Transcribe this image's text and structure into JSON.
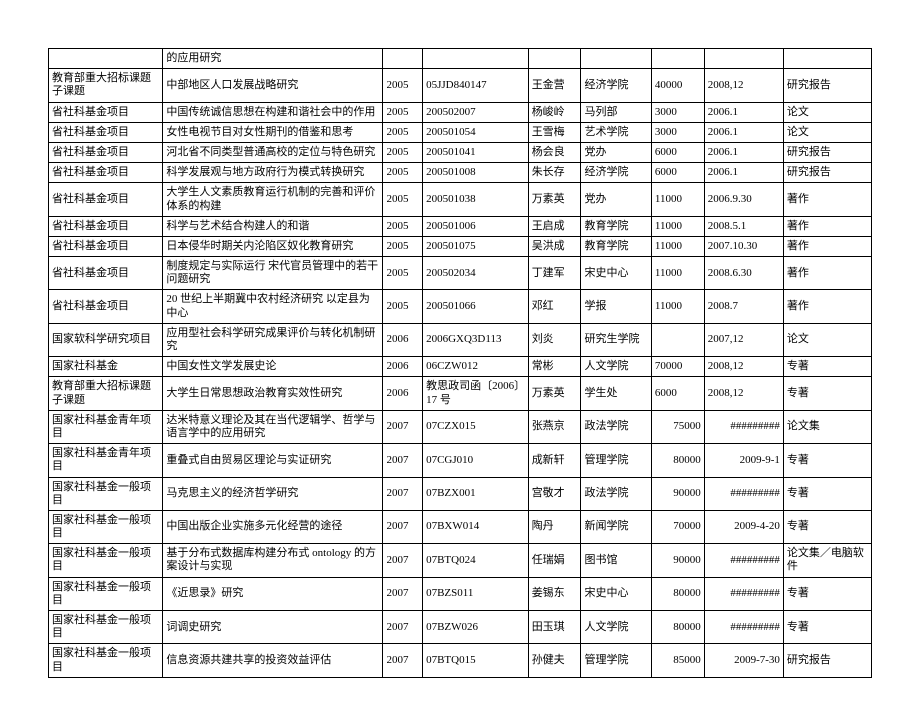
{
  "table": {
    "rows": [
      {
        "c0": "",
        "c1": "的应用研究",
        "c2": "",
        "c3": "",
        "c4": "",
        "c5": "",
        "c6": "",
        "c6align": "l",
        "c7": "",
        "c8": ""
      },
      {
        "c0": "教育部重大招标课题子课题",
        "c1": "中部地区人口发展战略研究",
        "c2": "2005",
        "c3": "05JJD840147",
        "c4": "王金营",
        "c5": "经济学院",
        "c6": "40000",
        "c6align": "l",
        "c7": "2008,12",
        "c8": "研究报告"
      },
      {
        "c0": "省社科基金项目",
        "c1": "中国传统诚信思想在构建和谐社会中的作用",
        "c2": "2005",
        "c3": "200502007",
        "c4": "杨峻岭",
        "c5": "马列部",
        "c6": "3000",
        "c6align": "l",
        "c7": "2006.1",
        "c8": "论文"
      },
      {
        "c0": "省社科基金项目",
        "c1": "女性电视节目对女性期刊的借鉴和思考",
        "c2": "2005",
        "c3": "200501054",
        "c4": "王雪梅",
        "c5": "艺术学院",
        "c6": "3000",
        "c6align": "l",
        "c7": "2006.1",
        "c8": "论文"
      },
      {
        "c0": "省社科基金项目",
        "c1": "河北省不同类型普通高校的定位与特色研究",
        "c2": "2005",
        "c3": "200501041",
        "c4": "杨会良",
        "c5": "党办",
        "c6": "6000",
        "c6align": "l",
        "c7": "2006.1",
        "c8": "研究报告"
      },
      {
        "c0": "省社科基金项目",
        "c1": "科学发展观与地方政府行为模式转换研究",
        "c2": "2005",
        "c3": "200501008",
        "c4": "朱长存",
        "c5": "经济学院",
        "c6": "6000",
        "c6align": "l",
        "c7": "2006.1",
        "c8": "研究报告"
      },
      {
        "c0": "省社科基金项目",
        "c1": "大学生人文素质教育运行机制的完善和评价体系的构建",
        "c2": "2005",
        "c3": "200501038",
        "c4": "万素英",
        "c5": "党办",
        "c6": "11000",
        "c6align": "l",
        "c7": "2006.9.30",
        "c8": "著作"
      },
      {
        "c0": "省社科基金项目",
        "c1": "科学与艺术结合构建人的和谐",
        "c2": "2005",
        "c3": "200501006",
        "c4": "王启成",
        "c5": "教育学院",
        "c6": "11000",
        "c6align": "l",
        "c7": "2008.5.1",
        "c8": "著作"
      },
      {
        "c0": "省社科基金项目",
        "c1": "日本侵华时期关内沦陷区奴化教育研究",
        "c2": "2005",
        "c3": "200501075",
        "c4": "吴洪成",
        "c5": "教育学院",
        "c6": "11000",
        "c6align": "l",
        "c7": "2007.10.30",
        "c8": "著作"
      },
      {
        "c0": "省社科基金项目",
        "c1": "制度规定与实际运行 宋代官员管理中的若干问题研究",
        "c2": "2005",
        "c3": "200502034",
        "c4": "丁建军",
        "c5": "宋史中心",
        "c6": "11000",
        "c6align": "l",
        "c7": "2008.6.30",
        "c8": "著作"
      },
      {
        "c0": "省社科基金项目",
        "c1": "20 世纪上半期冀中农村经济研究 以定县为中心",
        "c2": "2005",
        "c3": "200501066",
        "c4": "邓红",
        "c5": "学报",
        "c6": "11000",
        "c6align": "l",
        "c7": "2008.7",
        "c8": "著作"
      },
      {
        "c0": "国家软科学研究项目",
        "c1": "应用型社会科学研究成果评价与转化机制研究",
        "c2": "2006",
        "c3": "2006GXQ3D113",
        "c4": "刘炎",
        "c5": "研究生学院",
        "c6": "",
        "c6align": "l",
        "c7": "2007,12",
        "c8": "论文"
      },
      {
        "c0": "国家社科基金",
        "c1": "中国女性文学发展史论",
        "c2": "2006",
        "c3": "06CZW012",
        "c4": "常彬",
        "c5": "人文学院",
        "c6": "70000",
        "c6align": "l",
        "c7": "2008,12",
        "c8": "专著"
      },
      {
        "c0": "教育部重大招标课题子课题",
        "c1": "大学生日常思想政治教育实效性研究",
        "c2": "2006",
        "c3": "教思政司函〔2006〕17 号",
        "c4": "万素英",
        "c5": "学生处",
        "c6": "6000",
        "c6align": "l",
        "c7": "2008,12",
        "c8": "专著"
      },
      {
        "c0": "国家社科基金青年项目",
        "c1": "达米特意义理论及其在当代逻辑学、哲学与语言学中的应用研究",
        "c2": "2007",
        "c3": "07CZX015",
        "c4": "张燕京",
        "c5": "政法学院",
        "c6": "75000",
        "c6align": "r",
        "c7": "#########",
        "c8": "论文集"
      },
      {
        "c0": "国家社科基金青年项目",
        "c1": "重叠式自由贸易区理论与实证研究",
        "c2": "2007",
        "c3": "07CGJ010",
        "c4": "成新轩",
        "c5": "管理学院",
        "c6": "80000",
        "c6align": "r",
        "c7": "2009-9-1",
        "c8": "专著"
      },
      {
        "c0": "国家社科基金一般项目",
        "c1": "马克思主义的经济哲学研究",
        "c2": "2007",
        "c3": "07BZX001",
        "c4": "宫敬才",
        "c5": "政法学院",
        "c6": "90000",
        "c6align": "r",
        "c7": "#########",
        "c8": "专著"
      },
      {
        "c0": "国家社科基金一般项目",
        "c1": "中国出版企业实施多元化经营的途径",
        "c2": "2007",
        "c3": "07BXW014",
        "c4": "陶丹",
        "c5": "新闻学院",
        "c6": "70000",
        "c6align": "r",
        "c7": "2009-4-20",
        "c8": "专著"
      },
      {
        "c0": "国家社科基金一般项目",
        "c1": "基于分布式数据库构建分布式 ontology 的方案设计与实现",
        "c2": "2007",
        "c3": "07BTQ024",
        "c4": "任瑞娟",
        "c5": "图书馆",
        "c6": "90000",
        "c6align": "r",
        "c7": "#########",
        "c8": "论文集／电脑软件"
      },
      {
        "c0": "国家社科基金一般项目",
        "c1": "《近思录》研究",
        "c2": "2007",
        "c3": "07BZS011",
        "c4": "姜锡东",
        "c5": "宋史中心",
        "c6": "80000",
        "c6align": "r",
        "c7": "#########",
        "c8": "专著"
      },
      {
        "c0": "国家社科基金一般项目",
        "c1": "词调史研究",
        "c2": "2007",
        "c3": "07BZW026",
        "c4": "田玉琪",
        "c5": "人文学院",
        "c6": "80000",
        "c6align": "r",
        "c7": "#########",
        "c8": "专著"
      },
      {
        "c0": "国家社科基金一般项目",
        "c1": "信息资源共建共享的投资效益评估",
        "c2": "2007",
        "c3": "07BTQ015",
        "c4": "孙健夫",
        "c5": "管理学院",
        "c6": "85000",
        "c6align": "r",
        "c7": "2009-7-30",
        "c8": "研究报告"
      }
    ]
  }
}
